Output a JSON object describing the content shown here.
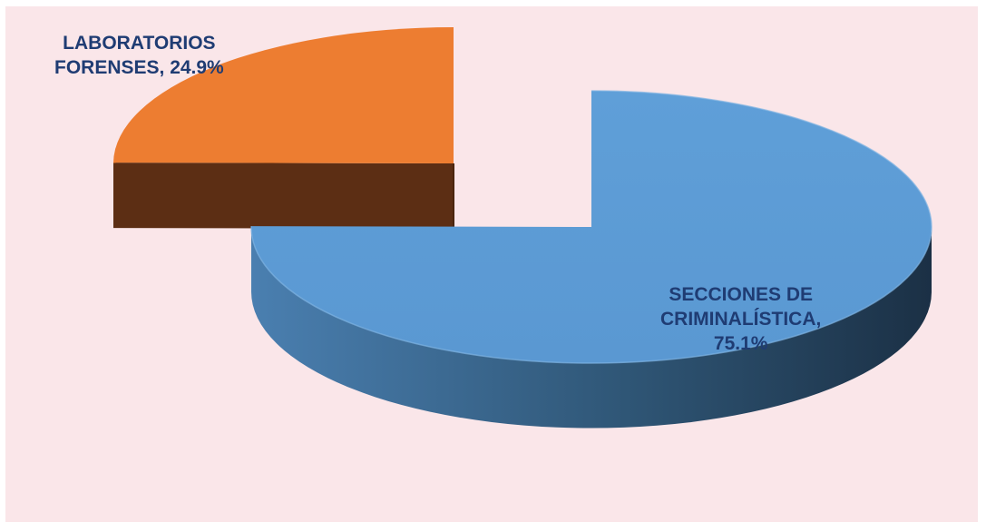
{
  "chart_data": {
    "type": "pie",
    "style": "3d-exploded",
    "title": "",
    "slices": [
      {
        "label_lines": [
          "LABORATORIOS",
          "FORENSES, 24.9%"
        ],
        "name": "LABORATORIOS FORENSES",
        "value": 24.9,
        "color": "#ed7d31",
        "side_color": "#5c2e14"
      },
      {
        "label_lines": [
          "SECCIONES DE",
          "CRIMINALÍSTICA,",
          "75.1%"
        ],
        "name": "SECCIONES DE CRIMINALÍSTICA",
        "value": 75.1,
        "color": "#5b9bd5",
        "side_color": "#2e4f6e"
      }
    ],
    "legend": "none",
    "label_color": "#1f3c73",
    "background_color": "#fae6e9"
  }
}
